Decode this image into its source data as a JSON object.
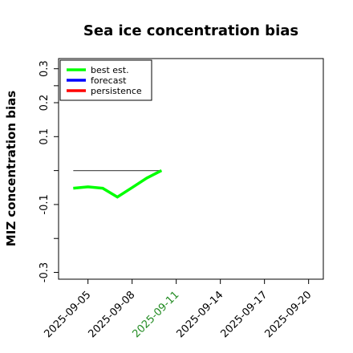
{
  "chart_data": {
    "type": "line",
    "title": "Sea ice concentration bias",
    "xlabel": "",
    "ylabel": "MIZ concentration bias",
    "xlim": [
      "2025-09-03",
      "2025-09-21"
    ],
    "ylim": [
      -0.32,
      0.33
    ],
    "yticks": [
      {
        "value": 0.3,
        "label": "0.3"
      },
      {
        "value": 0.25,
        "label": ""
      },
      {
        "value": 0.2,
        "label": "0.2"
      },
      {
        "value": 0.1,
        "label": "0.1"
      },
      {
        "value": 0.0,
        "label": ""
      },
      {
        "value": -0.1,
        "label": "-0.1"
      },
      {
        "value": -0.2,
        "label": ""
      },
      {
        "value": -0.3,
        "label": "-0.3"
      }
    ],
    "xticks": [
      {
        "value": "2025-09-05",
        "label": "2025-09-05",
        "color": "#000000"
      },
      {
        "value": "2025-09-08",
        "label": "2025-09-08",
        "color": "#000000"
      },
      {
        "value": "2025-09-11",
        "label": "2025-09-11",
        "color": "#228B22"
      },
      {
        "value": "2025-09-14",
        "label": "2025-09-14",
        "color": "#000000"
      },
      {
        "value": "2025-09-17",
        "label": "2025-09-17",
        "color": "#000000"
      },
      {
        "value": "2025-09-20",
        "label": "2025-09-20",
        "color": "#000000"
      }
    ],
    "series": [
      {
        "name": "best est.",
        "color": "#00ff00",
        "x": [
          "2025-09-04",
          "2025-09-05",
          "2025-09-06",
          "2025-09-07",
          "2025-09-08",
          "2025-09-09",
          "2025-09-10"
        ],
        "y": [
          -0.052,
          -0.048,
          -0.052,
          -0.078,
          -0.05,
          -0.022,
          0.0
        ]
      },
      {
        "name": "forecast",
        "color": "#0000ff",
        "x": [],
        "y": []
      },
      {
        "name": "persistence",
        "color": "#ff0000",
        "x": [],
        "y": []
      }
    ],
    "reference_line": {
      "color": "#555555",
      "x": [
        "2025-09-04",
        "2025-09-10"
      ],
      "y": [
        0.0,
        0.0
      ]
    },
    "legend": {
      "placement": "top-left",
      "entries": [
        "best est.",
        "forecast",
        "persistence"
      ]
    },
    "grid": false
  }
}
